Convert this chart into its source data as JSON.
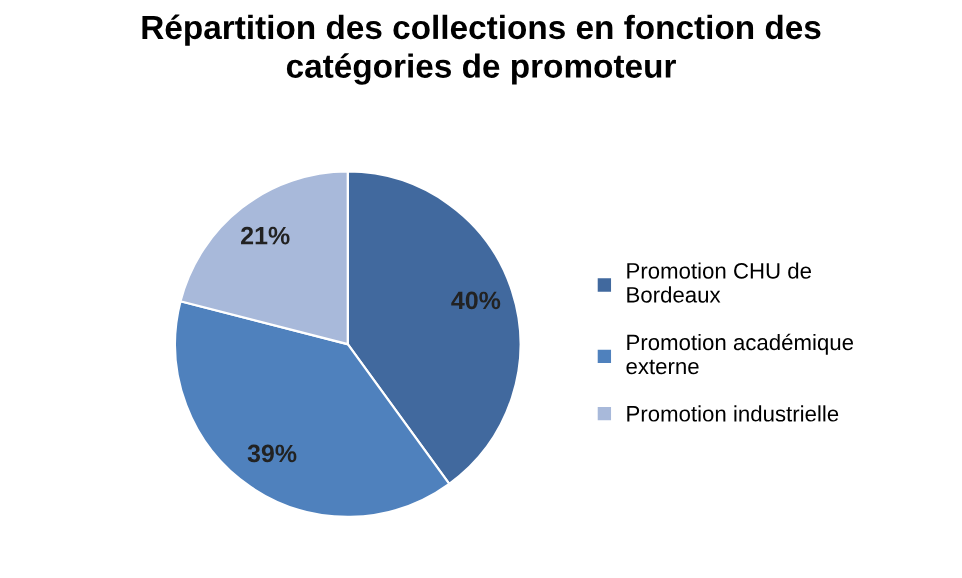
{
  "chart_data": {
    "type": "pie",
    "title": "Répartition des collections en fonction des\ncatégories de promoteur",
    "categories": [
      "Promotion CHU de\nBordeaux",
      "Promotion académique\nexterne",
      "Promotion industrielle"
    ],
    "values": [
      40,
      39,
      21
    ],
    "colors": [
      "#41699e",
      "#4f81bd",
      "#a8b9da"
    ],
    "value_labels": [
      "40%",
      "39%",
      "21%"
    ],
    "legend": "right"
  }
}
